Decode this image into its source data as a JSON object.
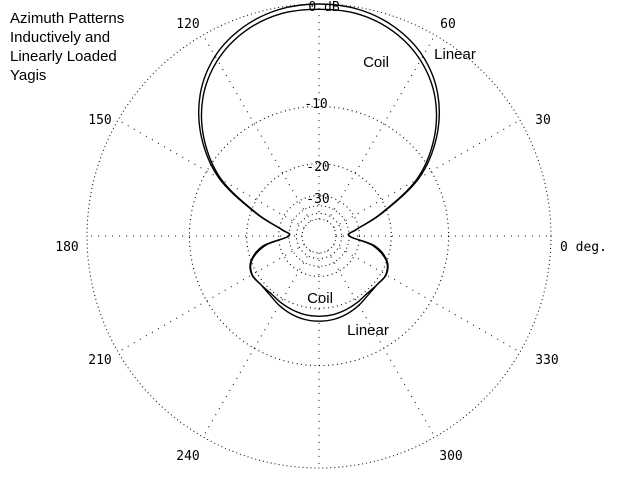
{
  "title": {
    "lines": [
      "Azimuth Patterns",
      "Inductively and",
      "Linearly Loaded",
      "Yagis"
    ]
  },
  "chart_data": {
    "type": "polar",
    "title": "Azimuth Patterns Inductively and Linearly Loaded Yagis",
    "angle_labels": [
      "0 deg.",
      "30",
      "60",
      "120",
      "150",
      "180",
      "210",
      "240",
      "300",
      "330"
    ],
    "angle_label_values": [
      0,
      30,
      60,
      120,
      150,
      180,
      210,
      240,
      300,
      330
    ],
    "ring_labels": [
      "0 dB",
      "-10",
      "-20",
      "-30"
    ],
    "ring_values_db": [
      0,
      -10,
      -20,
      -30
    ],
    "grid": "dotted",
    "colors": {
      "series": "#000000",
      "grid": "#000000"
    },
    "series": [
      {
        "name": "Linear",
        "label_front": "Linear",
        "label_back": "Linear",
        "points": [
          {
            "az": 0,
            "db": -35
          },
          {
            "az": 10,
            "db": -31
          },
          {
            "az": 20,
            "db": -21.2
          },
          {
            "az": 30,
            "db": -12.0
          },
          {
            "az": 40,
            "db": -7.1
          },
          {
            "az": 50,
            "db": -3.9
          },
          {
            "az": 60,
            "db": -1.9
          },
          {
            "az": 70,
            "db": -0.75
          },
          {
            "az": 80,
            "db": -0.15
          },
          {
            "az": 90,
            "db": 0.0
          },
          {
            "az": 100,
            "db": -0.15
          },
          {
            "az": 110,
            "db": -0.75
          },
          {
            "az": 120,
            "db": -1.9
          },
          {
            "az": 130,
            "db": -3.9
          },
          {
            "az": 140,
            "db": -7.1
          },
          {
            "az": 150,
            "db": -12.0
          },
          {
            "az": 160,
            "db": -21.2
          },
          {
            "az": 170,
            "db": -31
          },
          {
            "az": 180,
            "db": -35
          },
          {
            "az": 190,
            "db": -24.8
          },
          {
            "az": 200,
            "db": -20.2
          },
          {
            "az": 210,
            "db": -18.9
          },
          {
            "az": 220,
            "db": -19.2
          },
          {
            "az": 230,
            "db": -19.0
          },
          {
            "az": 240,
            "db": -18.3
          },
          {
            "az": 250,
            "db": -17.7
          },
          {
            "az": 260,
            "db": -17.3
          },
          {
            "az": 270,
            "db": -17.2
          },
          {
            "az": 280,
            "db": -17.3
          },
          {
            "az": 290,
            "db": -17.7
          },
          {
            "az": 300,
            "db": -18.3
          },
          {
            "az": 310,
            "db": -19.0
          },
          {
            "az": 320,
            "db": -19.2
          },
          {
            "az": 330,
            "db": -18.9
          },
          {
            "az": 340,
            "db": -20.2
          },
          {
            "az": 350,
            "db": -24.8
          }
        ]
      },
      {
        "name": "Coil",
        "label_front": "Coil",
        "label_back": "Coil",
        "points": [
          {
            "az": 0,
            "db": -35
          },
          {
            "az": 10,
            "db": -31
          },
          {
            "az": 20,
            "db": -21.5
          },
          {
            "az": 30,
            "db": -12.4
          },
          {
            "az": 40,
            "db": -7.5
          },
          {
            "az": 50,
            "db": -4.3
          },
          {
            "az": 60,
            "db": -2.3
          },
          {
            "az": 70,
            "db": -1.1
          },
          {
            "az": 80,
            "db": -0.5
          },
          {
            "az": 90,
            "db": -0.4
          },
          {
            "az": 100,
            "db": -0.5
          },
          {
            "az": 110,
            "db": -1.1
          },
          {
            "az": 120,
            "db": -2.3
          },
          {
            "az": 130,
            "db": -4.3
          },
          {
            "az": 140,
            "db": -7.5
          },
          {
            "az": 150,
            "db": -12.4
          },
          {
            "az": 160,
            "db": -21.5
          },
          {
            "az": 170,
            "db": -31
          },
          {
            "az": 180,
            "db": -35
          },
          {
            "az": 190,
            "db": -24.2
          },
          {
            "az": 200,
            "db": -20.0
          },
          {
            "az": 210,
            "db": -18.8
          },
          {
            "az": 220,
            "db": -19.2
          },
          {
            "az": 230,
            "db": -19.4
          },
          {
            "az": 240,
            "db": -19.0
          },
          {
            "az": 250,
            "db": -18.6
          },
          {
            "az": 260,
            "db": -18.3
          },
          {
            "az": 270,
            "db": -18.2
          },
          {
            "az": 280,
            "db": -18.3
          },
          {
            "az": 290,
            "db": -18.6
          },
          {
            "az": 300,
            "db": -19.0
          },
          {
            "az": 310,
            "db": -19.4
          },
          {
            "az": 320,
            "db": -19.2
          },
          {
            "az": 330,
            "db": -18.8
          },
          {
            "az": 340,
            "db": -20.0
          },
          {
            "az": 350,
            "db": -24.2
          }
        ]
      }
    ]
  }
}
